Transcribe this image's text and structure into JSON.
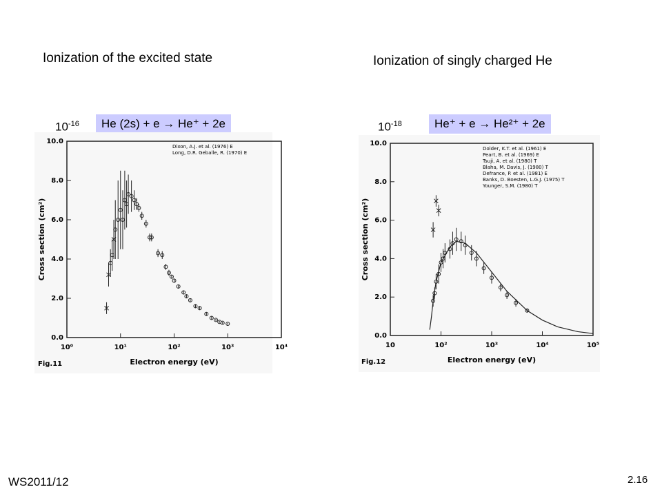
{
  "slide": {
    "title_left": "Ionization of the excited state",
    "title_right": "Ionization of singly charged He",
    "reaction_left": "He (2s) + e → He⁺ + 2e",
    "reaction_right": "He⁺ + e → He²⁺ + 2e",
    "footer_left": "WS2011/12",
    "footer_right": "2.16"
  },
  "chart_data": [
    {
      "type": "scatter",
      "fig_label": "Fig.11",
      "multiplier": {
        "base": "10",
        "exponent": "-16"
      },
      "xlabel": "Electron energy (eV)",
      "ylabel": "Cross section (cm²)",
      "xscale": "log",
      "xlim": [
        1,
        10000
      ],
      "xticks": [
        {
          "value": 1,
          "label": "10⁰"
        },
        {
          "value": 10,
          "label": "10¹"
        },
        {
          "value": 100,
          "label": "10²"
        },
        {
          "value": 1000,
          "label": "10³"
        },
        {
          "value": 10000,
          "label": "10⁴"
        }
      ],
      "ylim": [
        0,
        10
      ],
      "yticks": [
        {
          "value": 0,
          "label": "0.0"
        },
        {
          "value": 2,
          "label": "2.0"
        },
        {
          "value": 4,
          "label": "4.0"
        },
        {
          "value": 6,
          "label": "6.0"
        },
        {
          "value": 8,
          "label": "8.0"
        },
        {
          "value": 10,
          "label": "10.0"
        }
      ],
      "series": [
        {
          "name": "Dixon, A.J. et al. (1976) E",
          "marker": "circle",
          "color": "#222",
          "x": [
            6.5,
            7,
            8,
            9,
            10,
            11,
            12,
            13,
            14,
            16,
            18,
            20,
            22,
            25,
            30,
            35,
            38,
            50,
            60,
            70,
            80,
            90,
            100,
            120,
            150,
            170,
            200,
            250,
            300,
            400,
            500,
            600,
            700,
            800,
            1000
          ],
          "values": [
            3.8,
            4.2,
            5.5,
            6.0,
            6.5,
            6.0,
            7.0,
            6.8,
            7.3,
            7.2,
            7.0,
            6.8,
            6.6,
            6.2,
            5.8,
            5.1,
            5.1,
            4.3,
            4.2,
            3.6,
            3.3,
            3.1,
            2.9,
            2.6,
            2.3,
            2.1,
            1.9,
            1.6,
            1.5,
            1.2,
            1.0,
            0.9,
            0.8,
            0.75,
            0.7
          ],
          "errors": [
            0.7,
            0.8,
            1.5,
            2,
            2,
            1.5,
            1.5,
            1.2,
            1,
            0.8,
            0.5,
            0.3,
            0.2,
            0.2,
            0.2,
            0.2,
            0.2,
            0.2,
            0.2,
            0.15,
            0.15,
            0.1,
            0.1,
            0.1,
            0.1,
            0.1,
            0.1,
            0.1,
            0.1,
            0.08,
            0.08,
            0.05,
            0.05,
            0.05,
            0.05
          ]
        },
        {
          "name": "Long, D.R. Geballe, R. (1970) E",
          "marker": "cross",
          "color": "#222",
          "x": [
            5.5,
            6,
            7.5
          ],
          "values": [
            1.5,
            3.2,
            5.0
          ],
          "errors": [
            0.3,
            0.6,
            1
          ]
        }
      ]
    },
    {
      "type": "scatter",
      "fig_label": "Fig.12",
      "multiplier": {
        "base": "10",
        "exponent": "-18"
      },
      "xlabel": "Electron energy (eV)",
      "ylabel": "Cross section (cm²)",
      "xscale": "log",
      "xlim": [
        10,
        100000
      ],
      "xticks": [
        {
          "value": 10,
          "label": "10"
        },
        {
          "value": 100,
          "label": "10²"
        },
        {
          "value": 1000,
          "label": "10³"
        },
        {
          "value": 10000,
          "label": "10⁴"
        },
        {
          "value": 100000,
          "label": "10⁵"
        }
      ],
      "ylim": [
        0,
        10
      ],
      "yticks": [
        {
          "value": 0,
          "label": "0.0"
        },
        {
          "value": 2,
          "label": "2.0"
        },
        {
          "value": 4,
          "label": "4.0"
        },
        {
          "value": 6,
          "label": "6.0"
        },
        {
          "value": 8,
          "label": "8.0"
        },
        {
          "value": 10,
          "label": "10.0"
        }
      ],
      "legend": [
        "Dolder, K.T. et al. (1961) E",
        "Peart, B. et al. (1969) E",
        "Tsuji, A. et al. (1980) T",
        "Blaha, M. Davis, J. (1980) T",
        "Defrance, P. et al. (1981) E",
        "Banks, D. Boesten, L.G.J. (1975) T",
        "Younger, S.M. (1980) T"
      ],
      "series": [
        {
          "marker": "circle",
          "color": "#222",
          "x": [
            70,
            75,
            80,
            90,
            100,
            110,
            120,
            150,
            170,
            200,
            250,
            300,
            400,
            500,
            700,
            1000,
            1500,
            2000,
            3000,
            5000
          ],
          "values": [
            1.8,
            2.2,
            2.8,
            3.2,
            3.8,
            4.0,
            4.3,
            4.5,
            4.8,
            5.0,
            4.9,
            4.7,
            4.3,
            4.0,
            3.5,
            3.0,
            2.5,
            2.1,
            1.7,
            1.3
          ],
          "errors": [
            0.3,
            0.3,
            0.4,
            0.5,
            0.5,
            0.5,
            0.5,
            0.5,
            0.6,
            0.6,
            0.5,
            0.5,
            0.4,
            0.4,
            0.3,
            0.3,
            0.2,
            0.2,
            0.2,
            0.1
          ]
        },
        {
          "marker": "cross",
          "color": "#222",
          "x": [
            70,
            80,
            90
          ],
          "values": [
            5.5,
            7.0,
            6.5
          ],
          "errors": [
            0.4,
            0.3,
            0.3
          ]
        },
        {
          "marker": "line",
          "color": "#222",
          "x": [
            60,
            65,
            70,
            80,
            100,
            150,
            200,
            300,
            500,
            1000,
            2000,
            5000,
            10000,
            20000,
            50000,
            100000
          ],
          "values": [
            0.3,
            1.0,
            1.8,
            2.8,
            3.8,
            4.6,
            4.9,
            4.8,
            4.3,
            3.3,
            2.3,
            1.3,
            0.8,
            0.45,
            0.2,
            0.1
          ]
        }
      ]
    }
  ]
}
